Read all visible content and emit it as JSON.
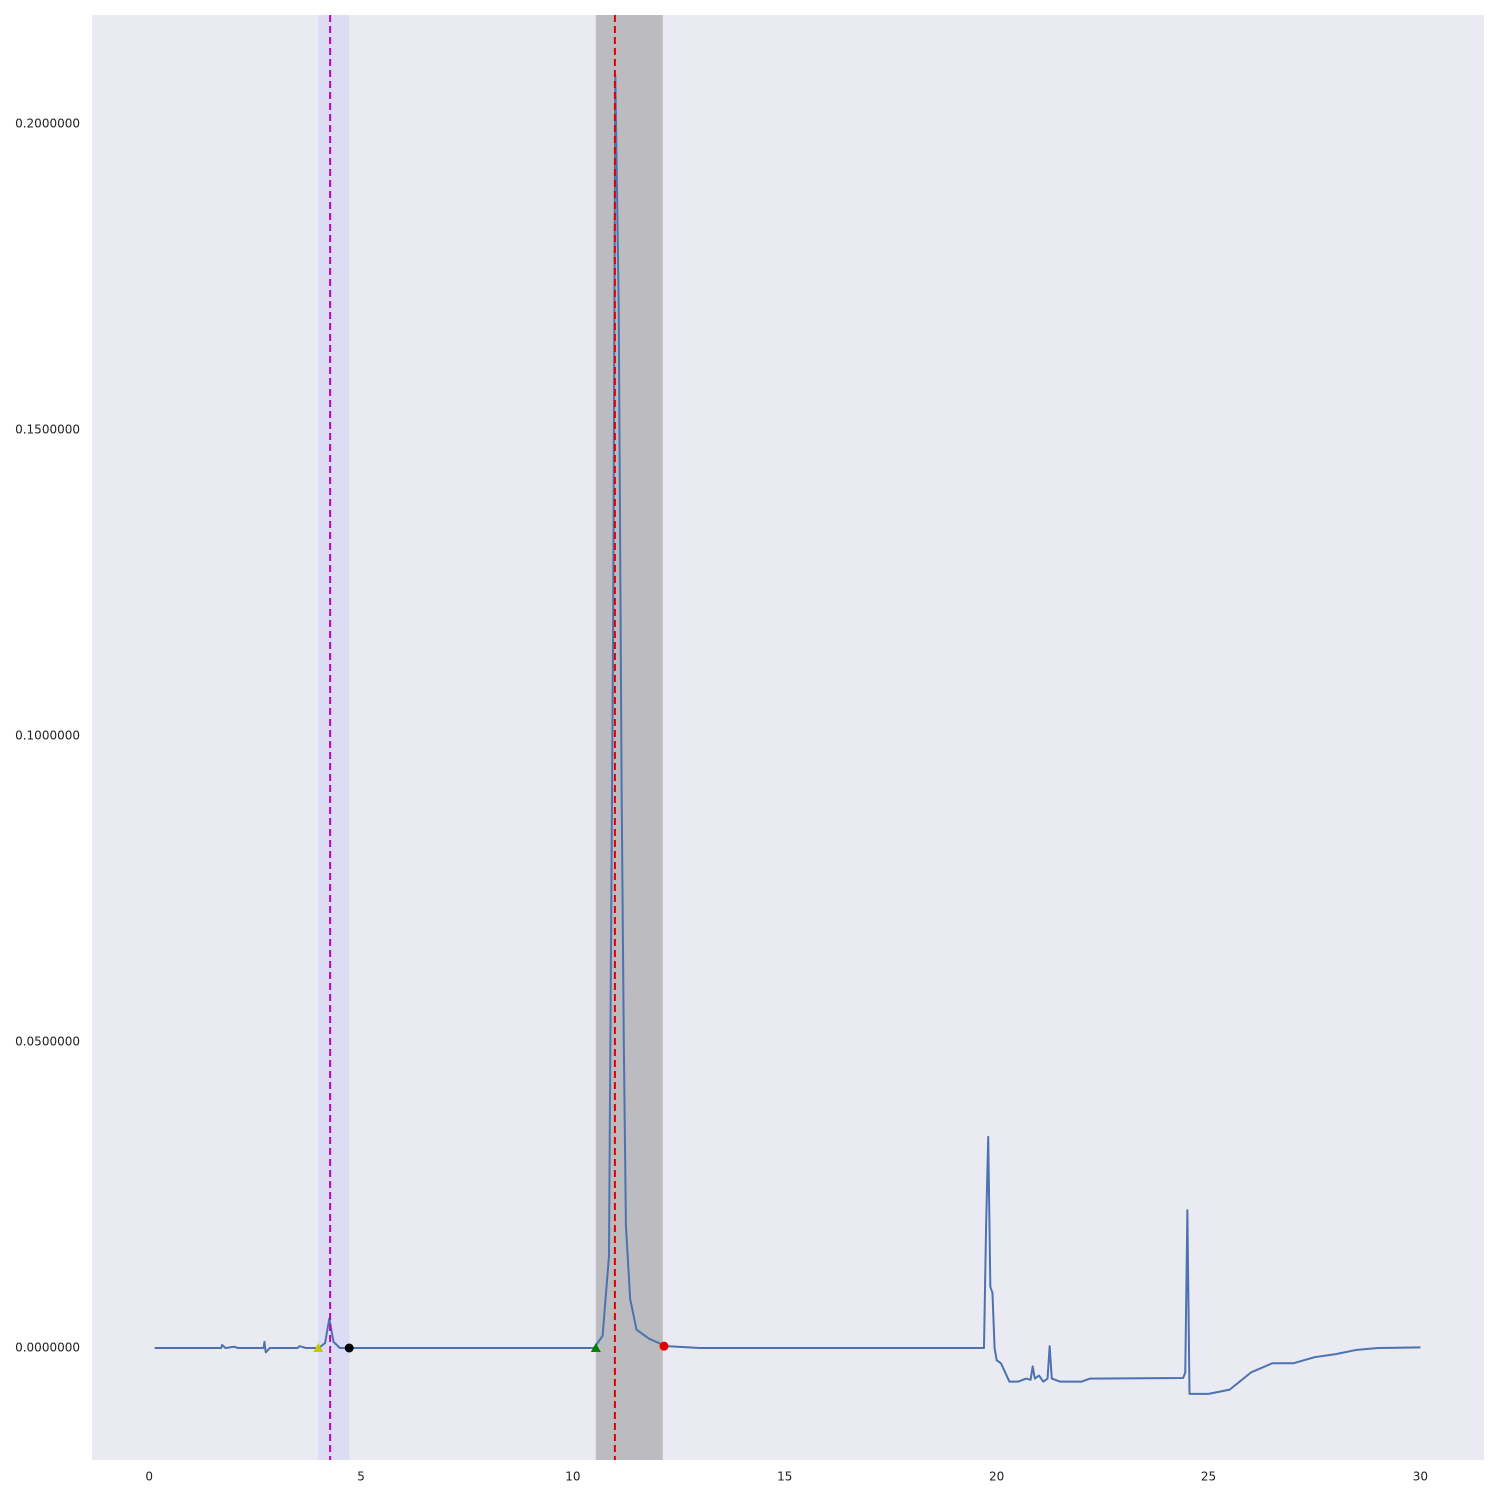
{
  "chart_data": {
    "type": "line",
    "x": [
      0.13,
      1.7,
      1.72,
      1.8,
      2.0,
      2.1,
      2.7,
      2.72,
      2.75,
      2.85,
      3.5,
      3.55,
      3.7,
      4.0,
      4.15,
      4.25,
      4.35,
      4.5,
      10.5,
      10.7,
      10.85,
      10.95,
      11.0,
      11.08,
      11.15,
      11.2,
      11.25,
      11.35,
      11.5,
      11.8,
      12.2,
      13.0,
      19.7,
      19.75,
      19.8,
      19.85,
      19.9,
      19.95,
      20.0,
      20.1,
      20.2,
      20.3,
      20.5,
      20.7,
      20.8,
      20.85,
      20.9,
      21.0,
      21.1,
      21.2,
      21.25,
      21.3,
      21.5,
      22.0,
      22.2,
      24.4,
      24.45,
      24.5,
      24.55,
      25.0,
      25.5,
      26.0,
      26.5,
      27.0,
      27.5,
      28.0,
      28.5,
      29.0,
      30.0
    ],
    "values": [
      0.0,
      0.0,
      0.0005,
      0.0,
      0.0002,
      0.0,
      0.0,
      0.001,
      -0.0007,
      0.0,
      0.0,
      0.0003,
      0.0,
      0.0,
      0.0008,
      0.0048,
      0.001,
      0.0,
      0.0,
      0.002,
      0.015,
      0.12,
      0.208,
      0.17,
      0.09,
      0.05,
      0.02,
      0.008,
      0.003,
      0.0015,
      0.0003,
      0.0,
      0.0,
      0.02,
      0.0345,
      0.01,
      0.009,
      0.0,
      -0.002,
      -0.0025,
      -0.004,
      -0.0055,
      -0.0055,
      -0.005,
      -0.0052,
      -0.003,
      -0.005,
      -0.0045,
      -0.0055,
      -0.005,
      0.0003,
      -0.005,
      -0.0055,
      -0.0055,
      -0.005,
      -0.0049,
      -0.004,
      0.0225,
      -0.0075,
      -0.0075,
      -0.0068,
      -0.004,
      -0.0025,
      -0.0025,
      -0.0015,
      -0.001,
      -0.0003,
      0.0,
      0.0001
    ],
    "color": "#4c72b0",
    "xlim": [
      -1.35,
      31.5
    ],
    "ylim": [
      -0.0183,
      0.2178
    ],
    "xticks": [
      0,
      5,
      10,
      15,
      20,
      25,
      30
    ],
    "yticks": [
      {
        "value": 0,
        "label": "0.0000000"
      },
      {
        "value": 0.05,
        "label": "0.0500000"
      },
      {
        "value": 0.1,
        "label": "0.1000000"
      },
      {
        "value": 0.15,
        "label": "0.1500000"
      },
      {
        "value": 0.2,
        "label": "0.2000000"
      }
    ],
    "spans": [
      {
        "x0": 3.99,
        "x1": 4.72,
        "color": "#dcdcf4"
      },
      {
        "x0": 10.54,
        "x1": 12.12,
        "color": "#bbbbc0"
      }
    ],
    "vlines": [
      {
        "x": 4.27,
        "color": "#bf00bf"
      },
      {
        "x": 10.99,
        "color": "#e00000"
      }
    ],
    "markers": [
      {
        "x": 3.99,
        "y": 0.0,
        "shape": "triangle",
        "color": "#c8c800"
      },
      {
        "x": 4.72,
        "y": 0.0,
        "shape": "circle",
        "color": "#000000"
      },
      {
        "x": 10.54,
        "y": 0.0,
        "shape": "triangle",
        "color": "#008000"
      },
      {
        "x": 12.15,
        "y": 0.0003,
        "shape": "circle",
        "color": "#e00000"
      }
    ],
    "background": "#eaeaf2"
  }
}
